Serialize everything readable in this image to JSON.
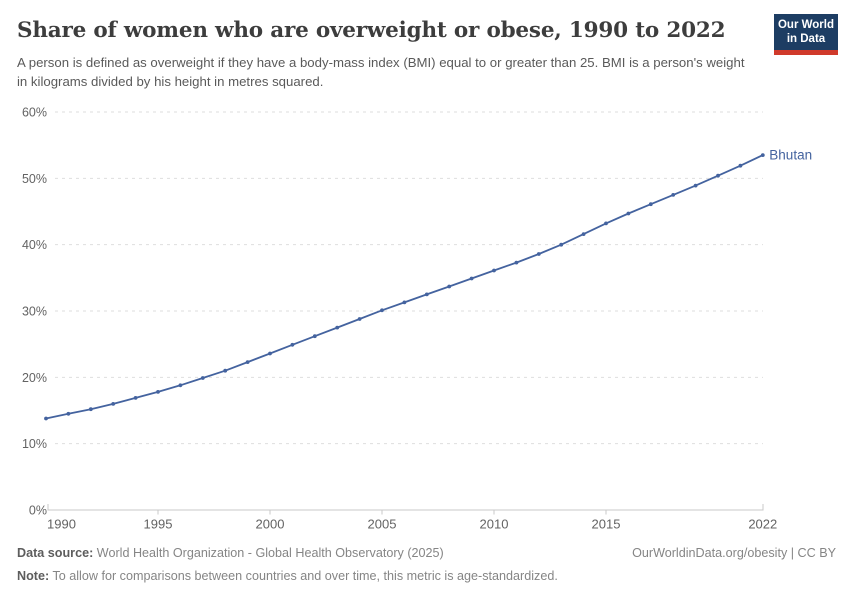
{
  "header": {
    "title": "Share of women who are overweight or obese, 1990 to 2022",
    "subtitle": "A person is defined as overweight if they have a body-mass index (BMI) equal to or greater than 25. BMI is a person's weight in kilograms divided by his height in metres squared.",
    "logo": {
      "line1": "Our World",
      "line2": "in Data"
    }
  },
  "chart_data": {
    "type": "line",
    "title": "Share of women who are overweight or obese, 1990 to 2022",
    "xlabel": "",
    "ylabel": "",
    "unit": "%",
    "xlim": [
      1990,
      2022
    ],
    "ylim": [
      0,
      60
    ],
    "x_ticks": [
      1990,
      1995,
      2000,
      2005,
      2010,
      2015,
      2022
    ],
    "y_ticks": [
      0,
      10,
      20,
      30,
      40,
      50,
      60
    ],
    "grid": "horizontal-dashed",
    "legend_position": "end-of-line-label",
    "series": [
      {
        "name": "Bhutan",
        "color": "#44639f",
        "x": [
          1990,
          1991,
          1992,
          1993,
          1994,
          1995,
          1996,
          1997,
          1998,
          1999,
          2000,
          2001,
          2002,
          2003,
          2004,
          2005,
          2006,
          2007,
          2008,
          2009,
          2010,
          2011,
          2012,
          2013,
          2014,
          2015,
          2016,
          2017,
          2018,
          2019,
          2020,
          2021,
          2022
        ],
        "values": [
          13.8,
          14.5,
          15.2,
          16.0,
          16.9,
          17.8,
          18.8,
          19.9,
          21.0,
          22.3,
          23.6,
          24.9,
          26.2,
          27.5,
          28.8,
          30.1,
          31.3,
          32.5,
          33.7,
          34.9,
          36.1,
          37.3,
          38.6,
          40.0,
          41.6,
          43.2,
          44.7,
          46.1,
          47.5,
          48.9,
          50.4,
          51.9,
          53.5
        ]
      }
    ]
  },
  "footer": {
    "datasource_label": "Data source:",
    "datasource_text": " World Health Organization - Global Health Observatory (2025)",
    "note_label": "Note:",
    "note_text": " To allow for comparisons between countries and over time, this metric is age-standardized.",
    "link_text": "OurWorldinData.org/obesity | CC BY"
  },
  "colors": {
    "accent_line": "#44639f",
    "logo_bg": "#1d3d63",
    "logo_stripe": "#d03a2b",
    "grid": "#dedede",
    "axis": "#c8c8c8",
    "tick_text": "#636363",
    "title_text": "#3d3d3d",
    "subtitle_text": "#5a5a5a",
    "footer_text": "#858585"
  }
}
